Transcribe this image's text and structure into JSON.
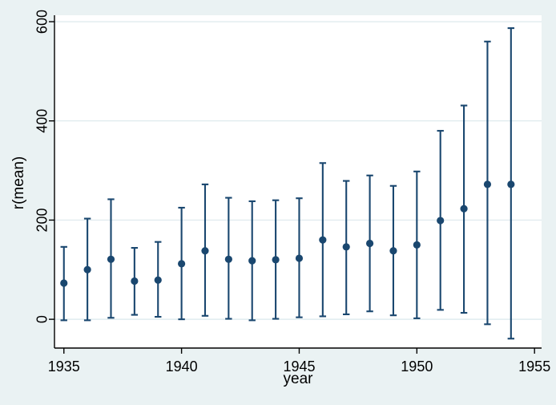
{
  "chart": {
    "background_color": "#EAF2F3",
    "plot_background_color": "#FFFFFF",
    "grid_color": "#E1ECEF",
    "marker_color": "#1A476F",
    "axis_color": "#000000",
    "x_axis_title": "year",
    "y_axis_title": "r(mean)",
    "y_tick_labels": [
      "0",
      "200",
      "400",
      "600"
    ],
    "x_tick_labels": [
      "1935",
      "1940",
      "1945",
      "1950",
      "1955"
    ]
  },
  "chart_data": {
    "type": "scatter",
    "title": "",
    "xlabel": "year",
    "ylabel": "r(mean)",
    "x": [
      1935,
      1936,
      1937,
      1938,
      1939,
      1940,
      1941,
      1942,
      1943,
      1944,
      1945,
      1946,
      1947,
      1948,
      1949,
      1950,
      1951,
      1952,
      1953,
      1954
    ],
    "series": [
      {
        "name": "r(mean)",
        "values": [
          73,
          100,
          121,
          77,
          79,
          112,
          138,
          121,
          118,
          120,
          123,
          160,
          146,
          153,
          138,
          150,
          199,
          223,
          272,
          272
        ]
      }
    ],
    "ci_low": [
      -2,
      -2,
      3,
      9,
      5,
      0,
      7,
      1,
      -2,
      1,
      4,
      6,
      10,
      16,
      8,
      2,
      19,
      13,
      -10,
      -39
    ],
    "ci_high": [
      146,
      203,
      242,
      144,
      156,
      225,
      272,
      245,
      238,
      240,
      244,
      315,
      279,
      290,
      269,
      298,
      380,
      431,
      560,
      587
    ],
    "y_ticks": [
      0,
      200,
      400,
      600
    ],
    "x_ticks": [
      1935,
      1940,
      1945,
      1950,
      1955
    ],
    "xlim": [
      1934.6,
      1955.3
    ],
    "ylim": [
      -58,
      613
    ],
    "grid": true,
    "legend": false,
    "marker": "circle",
    "error_bars": "capped"
  }
}
